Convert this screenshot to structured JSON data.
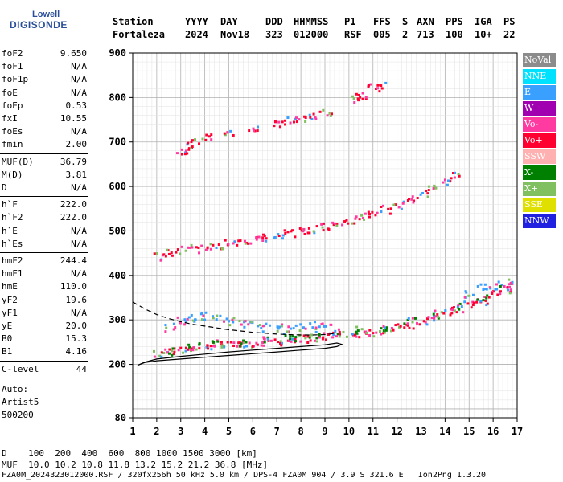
{
  "logo": {
    "line1": "Lowell",
    "line2": "DIGISONDE"
  },
  "header": {
    "labels": [
      "Station",
      "YYYY",
      "DAY",
      "DDD",
      "HHMMSS",
      "P1",
      "FFS",
      "S",
      "AXN",
      "PPS",
      "IGA",
      "PS"
    ],
    "values": [
      "Fortaleza",
      "2024",
      "Nov18",
      "323",
      "012000",
      "RSF",
      "005",
      "2",
      "713",
      "100",
      "10+",
      "22"
    ]
  },
  "params": {
    "group1": [
      {
        "name": "foF2",
        "value": "9.650"
      },
      {
        "name": "foF1",
        "value": "N/A"
      },
      {
        "name": "foF1p",
        "value": "N/A"
      },
      {
        "name": "foE",
        "value": "N/A"
      },
      {
        "name": "foEp",
        "value": "0.53"
      },
      {
        "name": "fxI",
        "value": "10.55"
      },
      {
        "name": "foEs",
        "value": "N/A"
      },
      {
        "name": "fmin",
        "value": "2.00"
      }
    ],
    "group2": [
      {
        "name": "MUF(D)",
        "value": "36.79"
      },
      {
        "name": "M(D)",
        "value": "3.81"
      },
      {
        "name": "D",
        "value": "N/A"
      }
    ],
    "group3": [
      {
        "name": "h`F",
        "value": "222.0"
      },
      {
        "name": "h`F2",
        "value": "222.0"
      },
      {
        "name": "h`E",
        "value": "N/A"
      },
      {
        "name": "h`Es",
        "value": "N/A"
      }
    ],
    "group4": [
      {
        "name": "hmF2",
        "value": "244.4"
      },
      {
        "name": "hmF1",
        "value": "N/A"
      },
      {
        "name": "hmE",
        "value": "110.0"
      },
      {
        "name": "yF2",
        "value": "19.6"
      },
      {
        "name": "yF1",
        "value": "N/A"
      },
      {
        "name": "yE",
        "value": "20.0"
      },
      {
        "name": "B0",
        "value": "15.3"
      },
      {
        "name": "B1",
        "value": "4.16"
      }
    ],
    "clevel": {
      "name": "C-level",
      "value": "44"
    },
    "auto": [
      "Auto:",
      "Artist5",
      "500200"
    ]
  },
  "legend": [
    {
      "label": "NoVal",
      "color": "#8c8c8c"
    },
    {
      "label": "NNE",
      "color": "#00e0ff"
    },
    {
      "label": "E",
      "color": "#3aa0ff"
    },
    {
      "label": "W",
      "color": "#a000b0"
    },
    {
      "label": "Vo-",
      "color": "#ff3aa0"
    },
    {
      "label": "Vo+",
      "color": "#ff0030"
    },
    {
      "label": "SSW",
      "color": "#ffb0b0"
    },
    {
      "label": "X-",
      "color": "#008000"
    },
    {
      "label": "X+",
      "color": "#80c060"
    },
    {
      "label": "SSE",
      "color": "#e0e000"
    },
    {
      "label": "NNW",
      "color": "#2020e0"
    }
  ],
  "footer": {
    "line1": "D    100  200  400  600  800 1000 1500 3000 [km]",
    "line2": "MUF  10.0 10.2 10.8 11.8 13.2 15.2 21.2 36.8 [MHz]",
    "line3": "FZA0M_2024323012000.RSF / 320fx256h 50 kHz 5.0 km / DPS-4 FZA0M 904 / 3.9 S 321.6 E   Ion2Png 1.3.20"
  },
  "chart_data": {
    "type": "scatter",
    "xlim": [
      1,
      17
    ],
    "ylim": [
      80,
      900
    ],
    "x_ticks": [
      1,
      2,
      3,
      4,
      5,
      6,
      7,
      8,
      9,
      10,
      11,
      12,
      13,
      14,
      15,
      16,
      17
    ],
    "y_ticks": [
      80,
      200,
      300,
      400,
      500,
      600,
      700,
      800,
      900
    ],
    "grid": true,
    "traces": [
      {
        "name": "F2 O-trace",
        "color": "#ff0030",
        "points": [
          [
            2.0,
            225
          ],
          [
            2.5,
            232
          ],
          [
            3.0,
            236
          ],
          [
            3.5,
            240
          ],
          [
            4.0,
            242
          ],
          [
            4.5,
            244
          ],
          [
            5.0,
            246
          ],
          [
            5.5,
            248
          ],
          [
            6.0,
            250
          ],
          [
            6.5,
            252
          ],
          [
            7.0,
            254
          ],
          [
            7.5,
            257
          ],
          [
            8.0,
            260
          ],
          [
            8.5,
            263
          ],
          [
            9.0,
            266
          ],
          [
            9.5,
            268
          ],
          [
            10.0,
            270
          ],
          [
            10.5,
            272
          ],
          [
            11.0,
            274
          ],
          [
            11.5,
            279
          ],
          [
            12.0,
            285
          ],
          [
            12.5,
            292
          ],
          [
            13.0,
            300
          ],
          [
            13.5,
            308
          ],
          [
            14.0,
            318
          ],
          [
            14.5,
            325
          ],
          [
            15.0,
            335
          ],
          [
            15.5,
            345
          ],
          [
            16.0,
            360
          ],
          [
            16.5,
            370
          ]
        ]
      },
      {
        "name": "F2 2nd hop",
        "color": "#ff0030",
        "points": [
          [
            2.0,
            445
          ],
          [
            2.5,
            452
          ],
          [
            3.0,
            458
          ],
          [
            3.5,
            462
          ],
          [
            4.0,
            466
          ],
          [
            4.5,
            470
          ],
          [
            5.0,
            474
          ],
          [
            5.5,
            478
          ],
          [
            6.0,
            483
          ],
          [
            6.5,
            488
          ],
          [
            7.0,
            492
          ],
          [
            7.5,
            497
          ],
          [
            8.0,
            502
          ],
          [
            8.5,
            507
          ],
          [
            9.0,
            512
          ],
          [
            9.5,
            518
          ],
          [
            10.0,
            525
          ],
          [
            10.5,
            533
          ],
          [
            11.0,
            540
          ],
          [
            11.5,
            550
          ],
          [
            12.0,
            560
          ],
          [
            12.5,
            572
          ],
          [
            13.0,
            585
          ],
          [
            13.5,
            600
          ],
          [
            14.0,
            615
          ],
          [
            14.5,
            625
          ]
        ]
      },
      {
        "name": "3rd hop",
        "color": "#ff0030",
        "points": [
          [
            3.0,
            680
          ],
          [
            3.2,
            690
          ],
          [
            3.5,
            700
          ],
          [
            4.0,
            712
          ],
          [
            5.0,
            720
          ],
          [
            6.0,
            730
          ],
          [
            7.0,
            740
          ],
          [
            7.5,
            750
          ],
          [
            8.0,
            755
          ],
          [
            8.5,
            762
          ],
          [
            9.0,
            770
          ],
          [
            10.2,
            800
          ],
          [
            10.5,
            805
          ],
          [
            11.0,
            825
          ],
          [
            11.3,
            832
          ]
        ]
      },
      {
        "name": "E-ray scatter",
        "color": "#3aa0ff",
        "points": [
          [
            2.5,
            285
          ],
          [
            3.0,
            300
          ],
          [
            3.5,
            305
          ],
          [
            4.0,
            310
          ],
          [
            4.5,
            305
          ],
          [
            5.0,
            300
          ],
          [
            5.5,
            295
          ],
          [
            6.0,
            290
          ],
          [
            6.5,
            285
          ],
          [
            7.0,
            285
          ],
          [
            7.5,
            280
          ],
          [
            8.0,
            285
          ],
          [
            8.5,
            290
          ],
          [
            9.0,
            295
          ],
          [
            15.0,
            360
          ],
          [
            15.5,
            375
          ],
          [
            16.0,
            380
          ],
          [
            16.5,
            385
          ]
        ]
      },
      {
        "name": "X-trace",
        "color": "#008000",
        "points": [
          [
            2.5,
            230
          ],
          [
            3.5,
            242
          ],
          [
            4.5,
            248
          ],
          [
            5.5,
            252
          ],
          [
            6.5,
            255
          ],
          [
            7.5,
            262
          ],
          [
            8.5,
            270
          ],
          [
            9.5,
            274
          ],
          [
            10.5,
            278
          ],
          [
            11.5,
            284
          ],
          [
            12.5,
            298
          ],
          [
            13.5,
            315
          ],
          [
            14.5,
            332
          ],
          [
            15.5,
            352
          ],
          [
            16.5,
            378
          ]
        ]
      }
    ],
    "profile_dashed": [
      [
        1.0,
        340
      ],
      [
        1.5,
        325
      ],
      [
        2.0,
        312
      ],
      [
        2.5,
        303
      ],
      [
        3.0,
        296
      ],
      [
        3.5,
        290
      ],
      [
        4.0,
        286
      ],
      [
        4.5,
        282
      ],
      [
        5.0,
        278
      ],
      [
        5.5,
        275
      ],
      [
        6.0,
        272
      ],
      [
        6.5,
        270
      ],
      [
        7.0,
        268
      ],
      [
        7.5,
        267
      ],
      [
        8.0,
        266
      ],
      [
        8.5,
        266
      ],
      [
        9.0,
        267
      ],
      [
        9.5,
        270
      ]
    ],
    "profile_solid": [
      [
        1.2,
        198
      ],
      [
        1.5,
        205
      ],
      [
        2.0,
        212
      ],
      [
        3.0,
        218
      ],
      [
        4.0,
        223
      ],
      [
        5.0,
        228
      ],
      [
        6.0,
        232
      ],
      [
        7.0,
        236
      ],
      [
        8.0,
        240
      ],
      [
        9.0,
        244
      ],
      [
        9.5,
        248
      ],
      [
        9.7,
        245
      ],
      [
        9.5,
        240
      ],
      [
        9.0,
        236
      ],
      [
        8.0,
        232
      ],
      [
        7.0,
        228
      ],
      [
        6.0,
        224
      ],
      [
        5.0,
        220
      ],
      [
        4.0,
        216
      ],
      [
        3.0,
        212
      ],
      [
        2.0,
        208
      ],
      [
        1.5,
        204
      ],
      [
        1.2,
        198
      ]
    ]
  }
}
